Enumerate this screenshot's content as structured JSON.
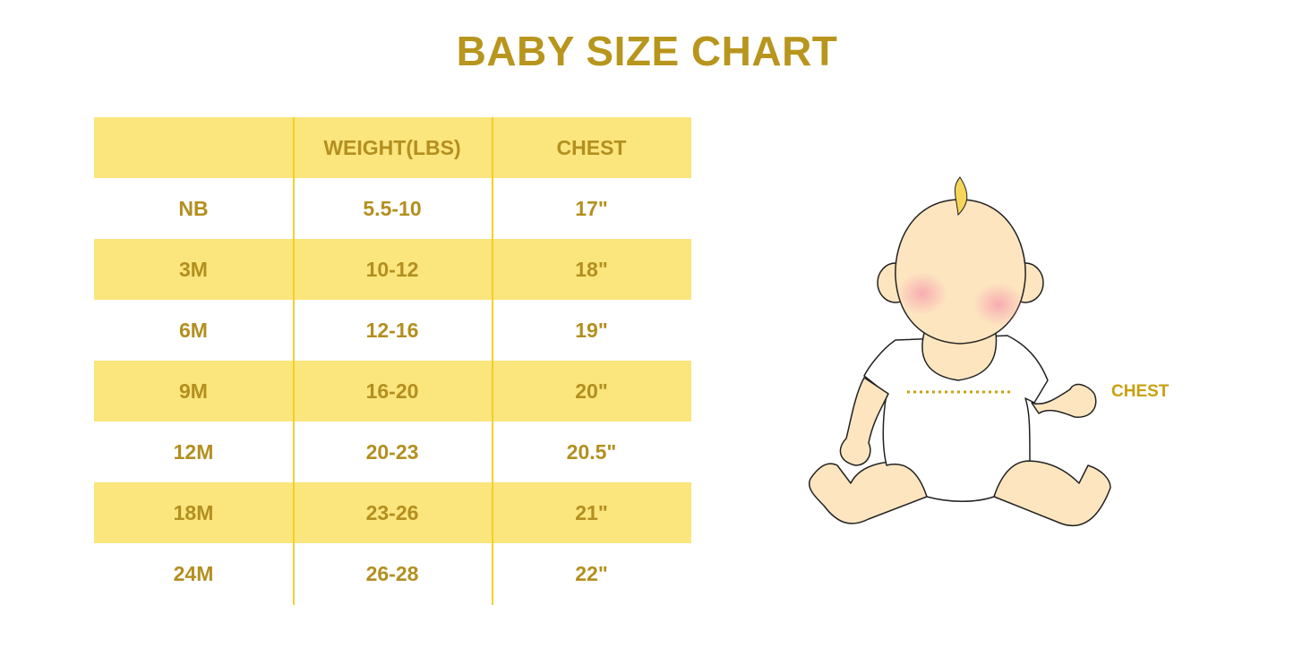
{
  "title": "BABY SIZE CHART",
  "table": {
    "headers": [
      "",
      "WEIGHT(LBS)",
      "CHEST"
    ],
    "rows": [
      [
        "NB",
        "5.5-10",
        "17\""
      ],
      [
        "3M",
        "10-12",
        "18\""
      ],
      [
        "6M",
        "12-16",
        "19\""
      ],
      [
        "9M",
        "16-20",
        "20\""
      ],
      [
        "12M",
        "20-23",
        "20.5\""
      ],
      [
        "18M",
        "23-26",
        "21\""
      ],
      [
        "24M",
        "26-28",
        "22\""
      ]
    ]
  },
  "illustration": {
    "chest_label": "CHEST"
  },
  "colors": {
    "accent_text": "#b38f1f",
    "row_fill": "#fbe57d",
    "divider": "#f5cf2a"
  }
}
